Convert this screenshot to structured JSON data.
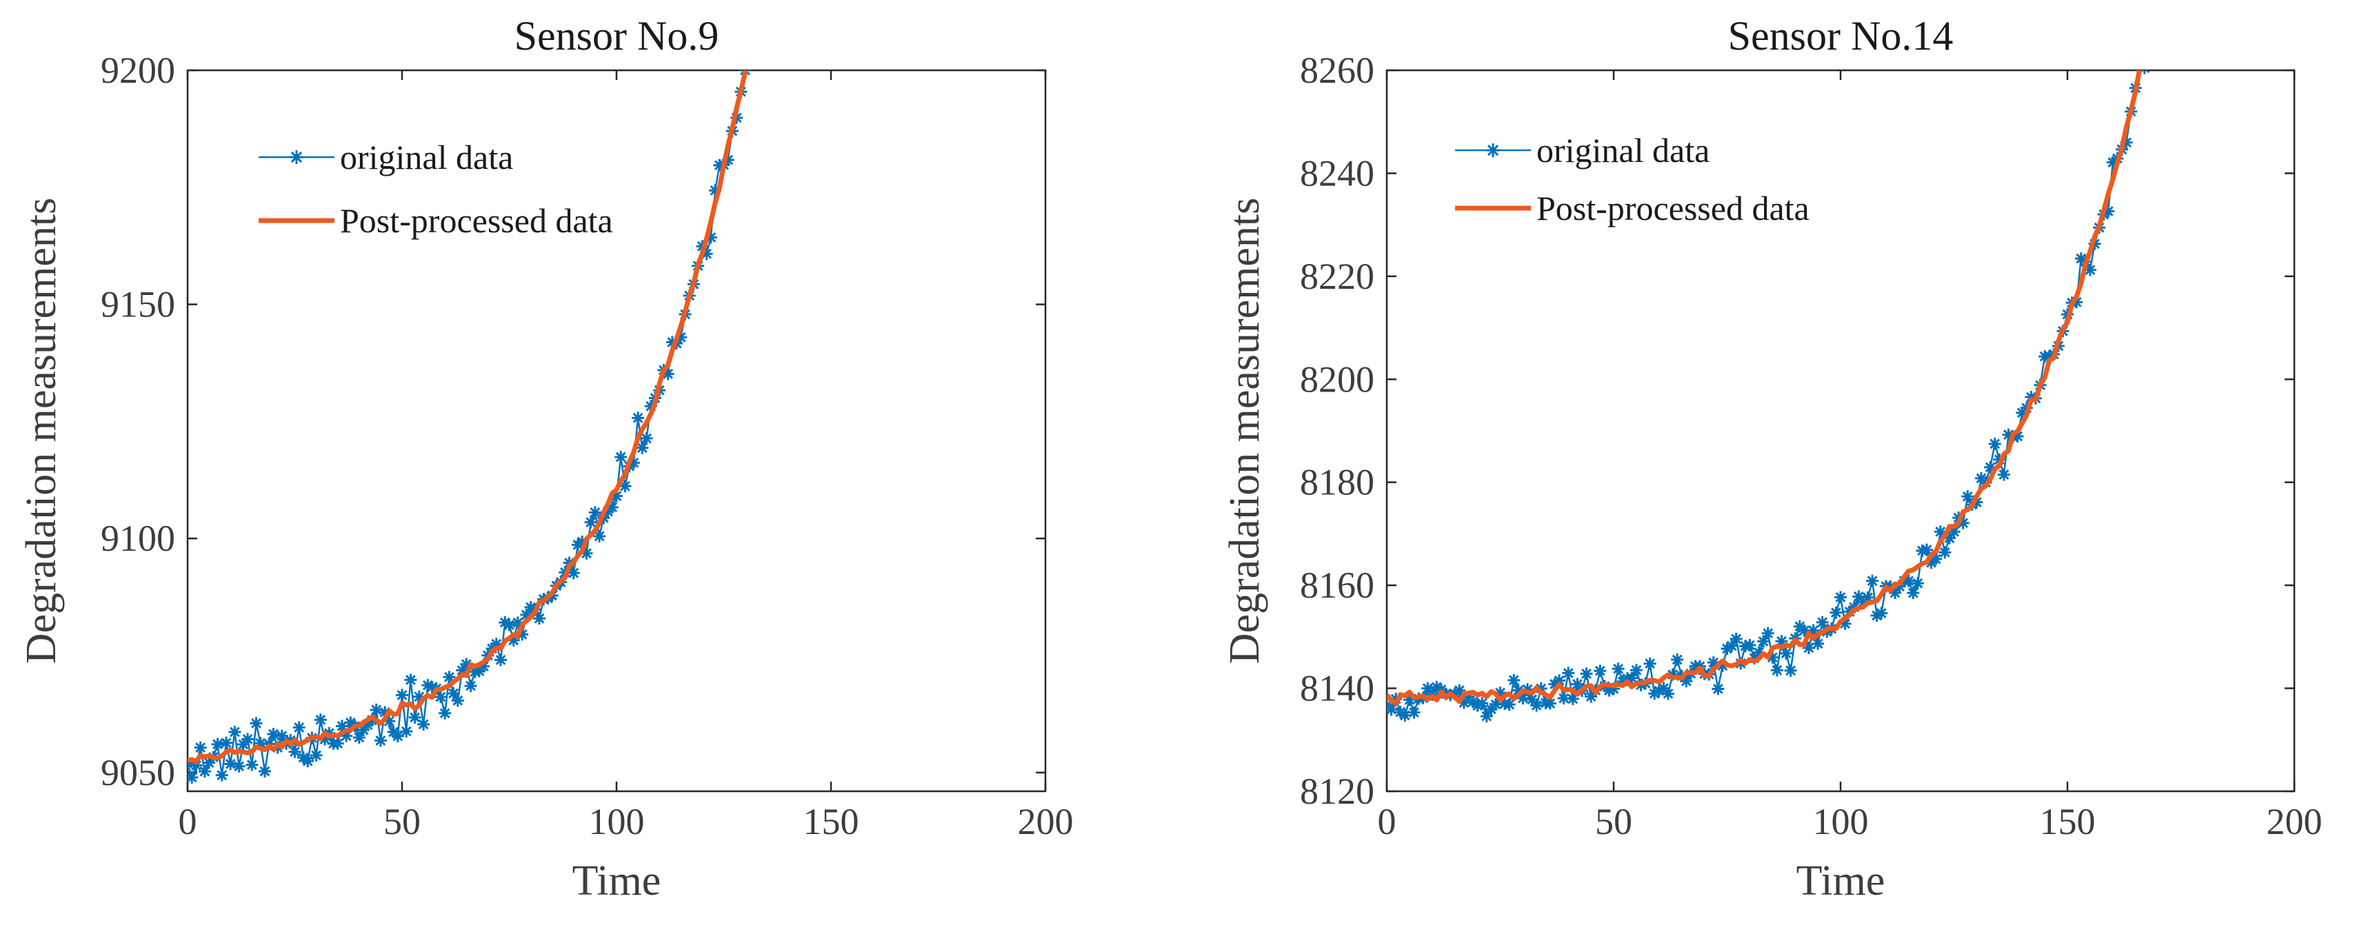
{
  "colors": {
    "original": "#0072BD",
    "processed": "#EE5B1E",
    "axis": "#262626"
  },
  "chart_data": [
    {
      "type": "line",
      "title": "Sensor No.9",
      "xlabel": "Time",
      "ylabel": "Degradation measurements",
      "xlim": [
        0,
        200
      ],
      "ylim": [
        9046,
        9200
      ],
      "xticks": [
        "0",
        "50",
        "100",
        "150",
        "200"
      ],
      "yticks": [
        "9050",
        "9100",
        "9150",
        "9200"
      ],
      "legend": "upper-left",
      "series": [
        {
          "name": "original data",
          "marker": "asterisk",
          "curve": {
            "n": 180,
            "base": 9053,
            "amp": 3.0,
            "k": 0.0301,
            "noise": 4.5,
            "seed": 9
          }
        },
        {
          "name": "Post-processed data",
          "marker": "none",
          "curve": {
            "n": 173,
            "base": 9053,
            "amp": 3.0,
            "k": 0.0301,
            "noise": 1.0,
            "seed": 19
          }
        }
      ]
    },
    {
      "type": "line",
      "title": "Sensor No.14",
      "xlabel": "Time",
      "ylabel": "Degradation measurements",
      "xlim": [
        0,
        200
      ],
      "ylim": [
        8120,
        8260
      ],
      "xticks": [
        "0",
        "50",
        "100",
        "150",
        "200"
      ],
      "yticks": [
        "8120",
        "8140",
        "8160",
        "8180",
        "8200",
        "8220",
        "8240",
        "8260"
      ],
      "legend": "upper-left",
      "series": [
        {
          "name": "original data",
          "marker": "asterisk",
          "curve": {
            "n": 180,
            "base": 8138,
            "amp": 0.69,
            "k": 0.0312,
            "noise": 3.5,
            "seed": 14
          }
        },
        {
          "name": "Post-processed data",
          "marker": "none",
          "curve": {
            "n": 173,
            "base": 8138,
            "amp": 0.69,
            "k": 0.0312,
            "noise": 0.9,
            "seed": 41
          }
        }
      ]
    }
  ]
}
